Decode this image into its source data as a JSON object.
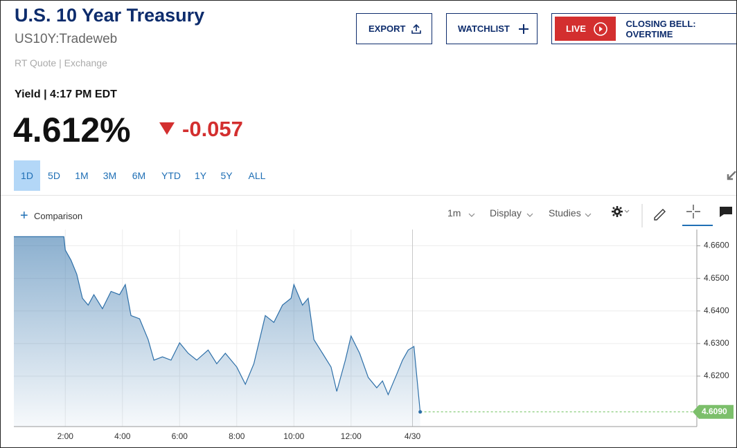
{
  "header": {
    "title": "U.S. 10 Year Treasury",
    "symbol": "US10Y:Tradeweb",
    "source": "RT Quote | Exchange"
  },
  "actions": {
    "export": "EXPORT",
    "watchlist": "WATCHLIST",
    "live": "LIVE",
    "live_show": "CLOSING BELL: OVERTIME"
  },
  "quote": {
    "label": "Yield | 4:17 PM EDT",
    "price": "4.612%",
    "change": "-0.057"
  },
  "ranges": [
    "1D",
    "5D",
    "1M",
    "3M",
    "6M",
    "YTD",
    "1Y",
    "5Y",
    "ALL"
  ],
  "active_range": "1D",
  "toolbar": {
    "comparison": "Comparison",
    "interval": "1m",
    "display": "Display",
    "studies": "Studies"
  },
  "chart_data": {
    "type": "line",
    "color": "#2d6fa8",
    "x": [
      0.2,
      1.95,
      2.0,
      2.2,
      2.4,
      2.6,
      2.8,
      3.0,
      3.3,
      3.6,
      3.9,
      4.1,
      4.3,
      4.6,
      4.9,
      5.1,
      5.4,
      5.7,
      6.0,
      6.3,
      6.6,
      7.0,
      7.3,
      7.6,
      8.0,
      8.3,
      8.6,
      9.0,
      9.3,
      9.6,
      9.9,
      10.0,
      10.3,
      10.5,
      10.7,
      11.0,
      11.3,
      11.5,
      11.8,
      12.0,
      12.3,
      12.6,
      12.9,
      13.1,
      13.3,
      13.6,
      13.8,
      14.0,
      14.2,
      14.42
    ],
    "values": [
      4.6628,
      4.6628,
      4.6587,
      4.6556,
      4.6513,
      4.6439,
      4.6418,
      4.645,
      4.6407,
      4.646,
      4.645,
      4.6481,
      4.6386,
      4.6376,
      4.6312,
      4.6249,
      4.6259,
      4.6249,
      4.6302,
      4.627,
      4.6249,
      4.628,
      4.6238,
      4.627,
      4.6228,
      4.6175,
      4.6238,
      4.6386,
      4.6365,
      4.6418,
      4.6439,
      4.6481,
      4.6418,
      4.6439,
      4.6312,
      4.627,
      4.6228,
      4.6153,
      4.6249,
      4.6323,
      4.627,
      4.6196,
      4.6164,
      4.6185,
      4.6143,
      4.6206,
      4.6249,
      4.628,
      4.6291,
      4.609
    ],
    "last_value": {
      "value": 4.609,
      "label": "4.6090"
    },
    "xlim": [
      0.2,
      24.1
    ],
    "ylim": [
      4.6045,
      4.665
    ],
    "xticks": [
      {
        "value": 2,
        "label": "2:00"
      },
      {
        "value": 4,
        "label": "4:00"
      },
      {
        "value": 6,
        "label": "6:00"
      },
      {
        "value": 8,
        "label": "8:00"
      },
      {
        "value": 10,
        "label": "10:00"
      },
      {
        "value": 12,
        "label": "12:00"
      },
      {
        "value": 14.15,
        "label": "4/30"
      }
    ],
    "yticks": [
      {
        "value": 4.62,
        "label": "4.6200"
      },
      {
        "value": 4.63,
        "label": "4.6300"
      },
      {
        "value": 4.64,
        "label": "4.6400"
      },
      {
        "value": 4.65,
        "label": "4.6500"
      },
      {
        "value": 4.66,
        "label": "4.6600"
      }
    ],
    "grid": true
  }
}
